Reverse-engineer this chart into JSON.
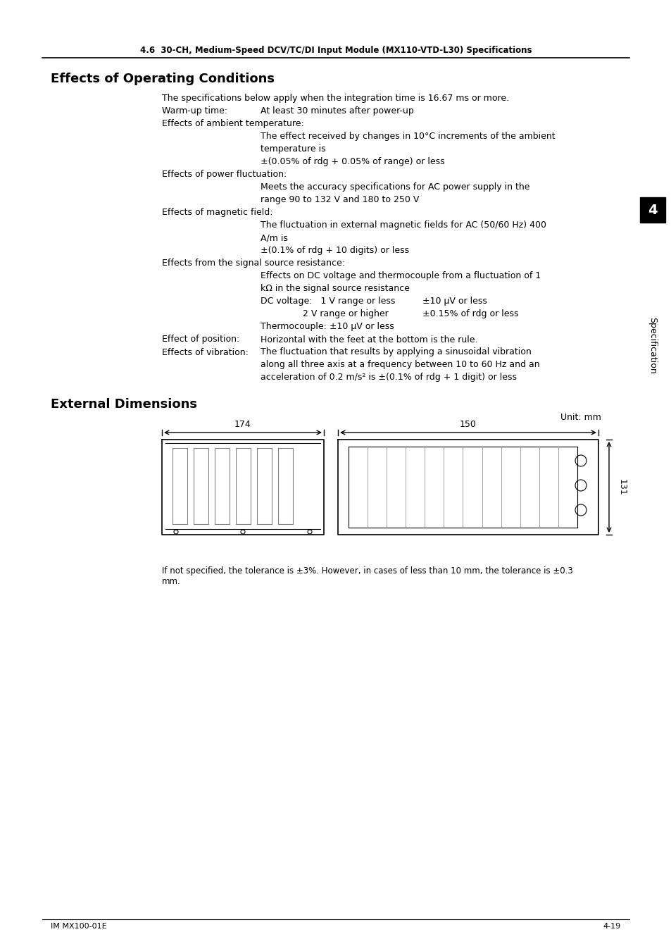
{
  "page_header": "4.6  30-CH, Medium-Speed DCV/TC/DI Input Module (MX110-VTD-L30) Specifications",
  "section1_title": "Effects of Operating Conditions",
  "section1_lines": [
    {
      "indent": 1,
      "text": "The specifications below apply when the integration time is 16.67 ms or more."
    },
    {
      "indent": 1,
      "text": "Warm-up time:",
      "value": "At least 30 minutes after power-up"
    },
    {
      "indent": 1,
      "text": "Effects of ambient temperature:"
    },
    {
      "indent": 2,
      "text": "The effect received by changes in 10°C increments of the ambient"
    },
    {
      "indent": 2,
      "text": "temperature is"
    },
    {
      "indent": 2,
      "text": "±(0.05% of rdg + 0.05% of range) or less"
    },
    {
      "indent": 1,
      "text": "Effects of power fluctuation:"
    },
    {
      "indent": 2,
      "text": "Meets the accuracy specifications for AC power supply in the"
    },
    {
      "indent": 2,
      "text": "range 90 to 132 V and 180 to 250 V"
    },
    {
      "indent": 1,
      "text": "Effects of magnetic field:"
    },
    {
      "indent": 2,
      "text": "The fluctuation in external magnetic fields for AC (50/60 Hz) 400"
    },
    {
      "indent": 2,
      "text": "A/m is"
    },
    {
      "indent": 2,
      "text": "±(0.1% of rdg + 10 digits) or less"
    },
    {
      "indent": 1,
      "text": "Effects from the signal source resistance:"
    },
    {
      "indent": 2,
      "text": "Effects on DC voltage and thermocouple from a fluctuation of 1"
    },
    {
      "indent": 2,
      "text": "kΩ in the signal source resistance"
    },
    {
      "indent": 2,
      "text": "DC voltage:   1 V range or less",
      "value": "±10 μV or less",
      "value_indent": 3
    },
    {
      "indent": 2,
      "text": "2 V range or higher",
      "value": "±0.15% of rdg or less",
      "value_indent": 3,
      "sub_indent": true
    },
    {
      "indent": 2,
      "text": "Thermocouple: ±10 μV or less"
    },
    {
      "indent": 1,
      "text": "Effect of position:",
      "value": "Horizontal with the feet at the bottom is the rule."
    },
    {
      "indent": 1,
      "text": "Effects of vibration:",
      "value": "The fluctuation that results by applying a sinusoidal vibration"
    },
    {
      "indent": 2,
      "text": "along all three axis at a frequency between 10 to 60 Hz and an"
    },
    {
      "indent": 2,
      "text": "acceleration of 0.2 m/s² is ±(0.1% of rdg + 1 digit) or less"
    }
  ],
  "section2_title": "External Dimensions",
  "unit_label": "Unit: mm",
  "dim1": "174",
  "dim2": "150",
  "dim3": "131",
  "footer_text": "If not specified, the tolerance is ±3%. However, in cases of less than 10 mm, the tolerance is ±0.3\nmm.",
  "page_left": "IM MX100-01E",
  "page_right": "4-19",
  "tab_label": "Specification",
  "tab_number": "4",
  "bg_color": "#ffffff",
  "text_color": "#000000",
  "header_line_color": "#000000"
}
